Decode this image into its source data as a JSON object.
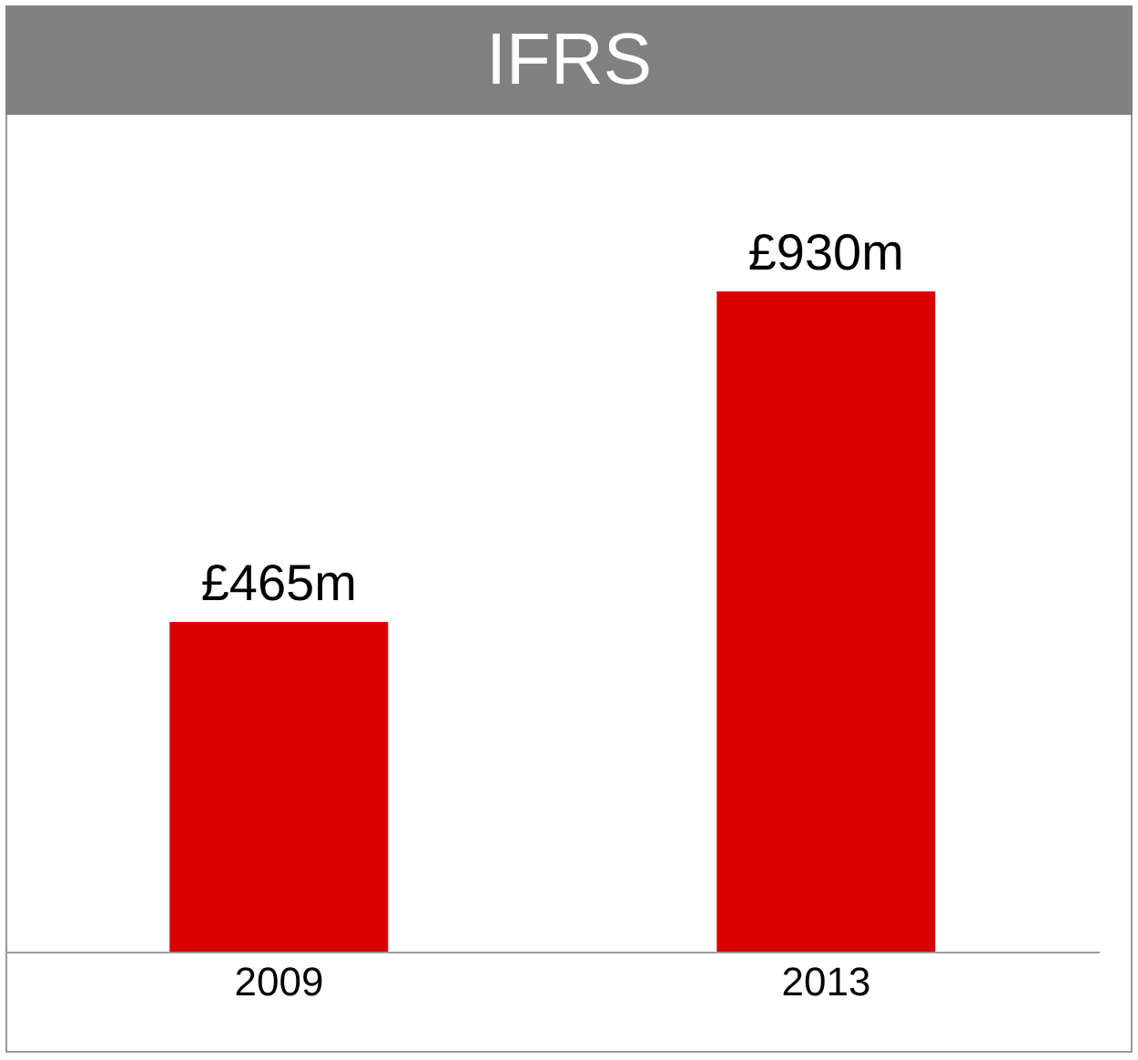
{
  "chart_data": {
    "type": "bar",
    "title": "IFRS",
    "categories": [
      "2009",
      "2013"
    ],
    "values": [
      465,
      930
    ],
    "value_labels": [
      "£465m",
      "£930m"
    ],
    "color": "#d90000"
  }
}
